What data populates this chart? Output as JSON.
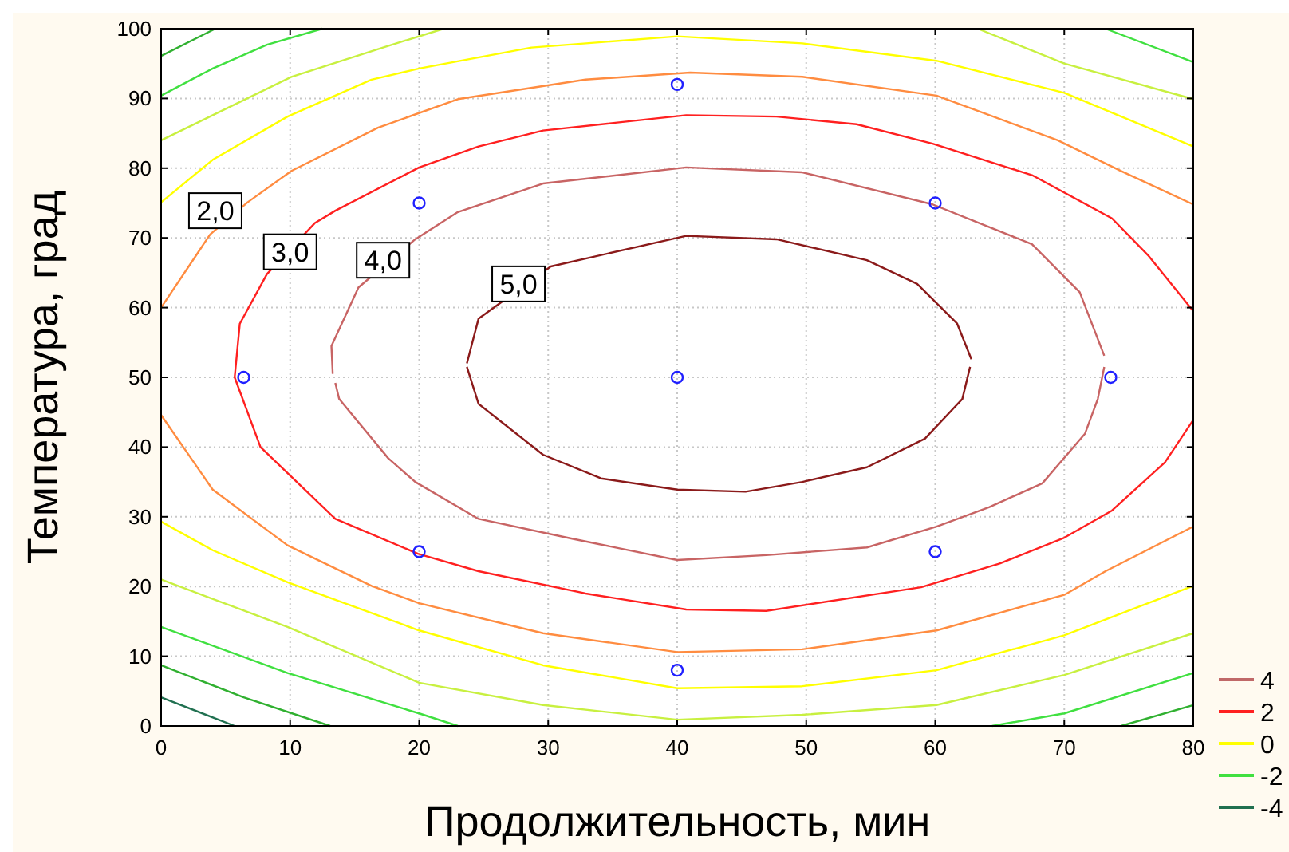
{
  "chart_data": {
    "type": "line",
    "xlabel": "Продолжительность, мин",
    "ylabel": "Температура, град",
    "xlim": [
      0,
      80
    ],
    "xticks": [
      0,
      10,
      20,
      30,
      40,
      50,
      60,
      70,
      80
    ],
    "ylim": [
      0,
      100
    ],
    "yticks": [
      0,
      10,
      20,
      30,
      40,
      50,
      60,
      70,
      80,
      90,
      100
    ],
    "grid": true,
    "legend": "bottom right",
    "series": [
      {
        "color": "#8b1a1a",
        "x": [
          23.7,
          24.6,
          30.2,
          40.7,
          47.7,
          54.7,
          58.6,
          61.7,
          62.8
        ],
        "values": [
          52,
          58.4,
          65.9,
          70.3,
          69.8,
          66.8,
          63.4,
          57.7,
          52.6
        ]
      },
      {
        "color": "#8b1a1a",
        "x": [
          23.7,
          24.6,
          29.6,
          34.1,
          40,
          45.3,
          49.7,
          54.7,
          59.2,
          62.1,
          62.7
        ],
        "values": [
          51.5,
          46.2,
          38.9,
          35.5,
          33.9,
          33.6,
          35,
          37.1,
          41.2,
          46.9,
          51.5
        ]
      },
      {
        "color": "#c86464",
        "x": [
          13.3,
          13.2,
          15.3,
          19.7,
          23,
          29.6,
          40.7,
          49.7,
          59.8,
          67.5,
          71.2,
          73.1
        ],
        "values": [
          50.5,
          54.5,
          62.9,
          69.8,
          73.7,
          77.8,
          80.1,
          79.4,
          74.8,
          69.1,
          62.2,
          53.1
        ]
      },
      {
        "color": "#c86464",
        "x": [
          13.5,
          13.8,
          17.6,
          19.7,
          24.6,
          32,
          40,
          46.9,
          54.7,
          60.1,
          64.2,
          68.3,
          71.6,
          72.6,
          73.1
        ],
        "values": [
          49.2,
          46.9,
          38.4,
          35,
          29.7,
          26.8,
          23.8,
          24.5,
          25.6,
          28.6,
          31.4,
          34.8,
          41.9,
          46.9,
          51.5
        ]
      },
      {
        "color": "#ff2020",
        "x": [
          80,
          76.5,
          73.7,
          67.5,
          59.8,
          53.9,
          47.7,
          40.7,
          29.6,
          24.6,
          20,
          13.5,
          11.9,
          8.2,
          6.1,
          5.7,
          7.7,
          10,
          13.5,
          19.9,
          24.6,
          32.9,
          40.7,
          46.9,
          58.9,
          65,
          70,
          73.7,
          77.8,
          80
        ],
        "values": [
          59.5,
          67.5,
          72.8,
          79,
          83.5,
          86.3,
          87.4,
          87.6,
          85.4,
          83.1,
          80.1,
          73.9,
          72.1,
          64.8,
          57.7,
          50,
          40,
          35.9,
          29.7,
          24.7,
          22.2,
          19,
          16.7,
          16.5,
          19.9,
          23.3,
          27,
          30.9,
          37.8,
          43.9
        ]
      },
      {
        "color": "#ff8c40",
        "x": [
          0,
          3.8,
          6.7,
          10.1,
          16.8,
          23,
          32.9,
          41,
          49.7,
          60.1,
          69.5,
          74.4,
          80
        ],
        "values": [
          60,
          70.5,
          75.1,
          79.6,
          85.8,
          89.9,
          92.7,
          93.7,
          93.1,
          90.4,
          84,
          79.6,
          74.8
        ]
      },
      {
        "color": "#ff8c40",
        "x": [
          0,
          4,
          9.8,
          16.3,
          20,
          29.6,
          40,
          49.7,
          60.1,
          70,
          73.2,
          80
        ],
        "values": [
          44.6,
          33.9,
          25.9,
          20.1,
          17.6,
          13.3,
          10.6,
          11,
          13.7,
          18.8,
          22.2,
          28.6
        ]
      },
      {
        "color": "#ffff00",
        "x": [
          0,
          4,
          9.8,
          16.3,
          20,
          28.7,
          40,
          49.7,
          60.1,
          70,
          80
        ],
        "values": [
          75.1,
          81.2,
          87.4,
          92.7,
          94.3,
          97.3,
          98.9,
          97.9,
          95.4,
          90.8,
          83.1
        ]
      },
      {
        "color": "#ffff00",
        "x": [
          0,
          4,
          9.8,
          20,
          29.6,
          40,
          49.7,
          60.1,
          70,
          80
        ],
        "values": [
          29.3,
          25.2,
          20.6,
          13.7,
          8.7,
          5.4,
          5.7,
          8,
          13,
          20.1
        ]
      },
      {
        "color": "#c8f040",
        "x": [
          0,
          4,
          10.1,
          17.2,
          21.9
        ],
        "values": [
          84,
          87.6,
          93.1,
          97.3,
          100
        ]
      },
      {
        "color": "#c8f040",
        "x": [
          63.3,
          70,
          80
        ],
        "values": [
          100,
          95,
          89.9
        ]
      },
      {
        "color": "#c8f040",
        "x": [
          0,
          9.8,
          20,
          29.6,
          40,
          49.7,
          60.1,
          70,
          80
        ],
        "values": [
          21,
          14.2,
          6.2,
          3,
          0.9,
          1.6,
          3,
          7.3,
          13.3
        ]
      },
      {
        "color": "#40e040",
        "x": [
          0,
          4,
          8.2,
          12.5
        ],
        "values": [
          90.4,
          94.3,
          97.7,
          100
        ]
      },
      {
        "color": "#40e040",
        "x": [
          73.2,
          80
        ],
        "values": [
          100,
          95.2
        ]
      },
      {
        "color": "#40e040",
        "x": [
          0,
          9.8,
          20,
          23
        ],
        "values": [
          14.2,
          7.6,
          1.8,
          0
        ]
      },
      {
        "color": "#40e040",
        "x": [
          64.4,
          70,
          80
        ],
        "values": [
          0,
          1.8,
          7.6
        ]
      },
      {
        "color": "#30b030",
        "x": [
          0,
          4.2
        ],
        "values": [
          96.1,
          100
        ]
      },
      {
        "color": "#30b030",
        "x": [
          0,
          6.4,
          13.1
        ],
        "values": [
          8.7,
          4.1,
          0
        ]
      },
      {
        "color": "#30b030",
        "x": [
          74.4,
          80
        ],
        "values": [
          0,
          3
        ]
      },
      {
        "color": "#207050",
        "x": [
          0,
          5.7
        ],
        "values": [
          4.1,
          0
        ]
      },
      {
        "type": "scatter",
        "marker": "circle",
        "color": "#2020ff",
        "x": [
          6.4,
          20,
          20,
          40,
          40,
          40,
          60,
          60,
          73.6
        ],
        "values": [
          50,
          25,
          75,
          8,
          50,
          92,
          25,
          75,
          50
        ]
      },
      {
        "name": "4",
        "color": "#c06868"
      },
      {
        "name": "2",
        "color": "#ff2020"
      },
      {
        "name": "0",
        "color": "#ffff00"
      },
      {
        "name": "-2",
        "color": "#40e040"
      },
      {
        "name": "-4",
        "color": "#207050"
      }
    ],
    "annotations": [
      {
        "text": "2,0",
        "x": 4.2,
        "y": 73.9
      },
      {
        "text": "3,0",
        "x": 10,
        "y": 68
      },
      {
        "text": "4,0",
        "x": 17.2,
        "y": 66.8
      },
      {
        "text": "5,0",
        "x": 27.7,
        "y": 63.4
      }
    ]
  }
}
